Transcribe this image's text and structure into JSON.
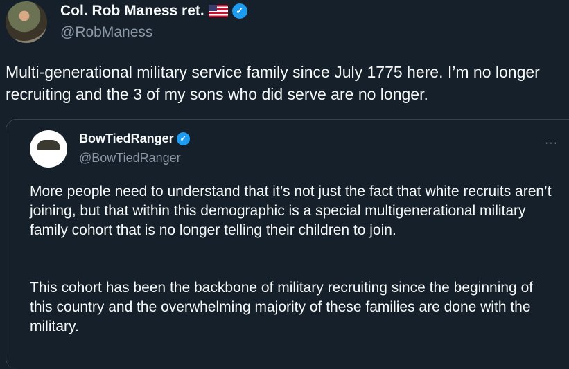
{
  "tweet": {
    "author_name": "Col. Rob Maness ret.",
    "handle": "@RobManess",
    "flag_icon": "us-flag-icon",
    "verified": true,
    "text": "Multi-generational military service family since July 1775 here. I’m no longer recruiting and the 3 of my sons who did serve are no longer."
  },
  "quote": {
    "author_name": "BowTiedRanger",
    "handle": "@BowTiedRanger",
    "verified": true,
    "more_label": "···",
    "paragraphs": [
      "More people need to understand that it’s not just the fact that white recruits aren’t joining, but that within this demographic is a special multigenerational military family cohort that is no longer telling their children to join.",
      "This cohort has been the backbone of military recruiting since the beginning of this country and the overwhelming majority of these families are done with the military."
    ]
  },
  "colors": {
    "background": "#15202b",
    "verified": "#1d9bf0",
    "secondary_text": "#8b98a5"
  }
}
